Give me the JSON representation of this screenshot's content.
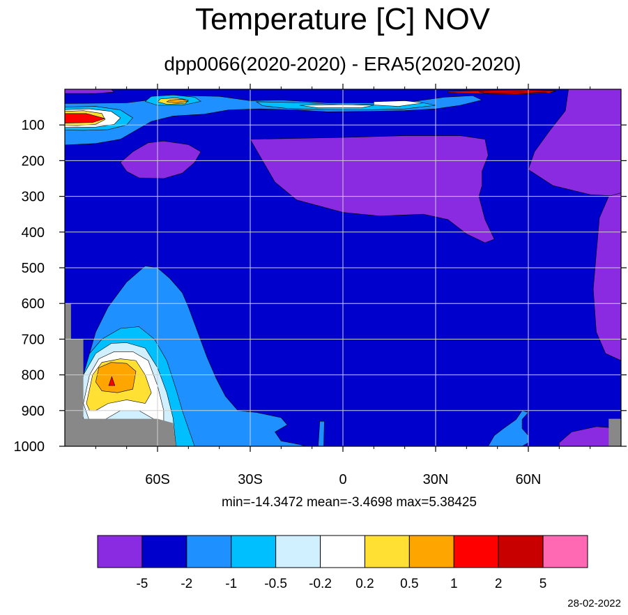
{
  "chart_data": {
    "type": "contour",
    "title": "Temperature [C] NOV",
    "subtitle": "dpp0066(2020-2020) - ERA5(2020-2020)",
    "x_axis": {
      "range": [
        -90,
        90
      ],
      "ticks": [
        -60,
        -30,
        0,
        30,
        60
      ],
      "tick_labels": [
        "60S",
        "30S",
        "0",
        "30N",
        "60N"
      ]
    },
    "y_axis": {
      "range": [
        1000,
        0
      ],
      "ticks": [
        100,
        200,
        300,
        400,
        500,
        600,
        700,
        800,
        900,
        1000
      ],
      "tick_labels": [
        "100",
        "200",
        "300",
        "400",
        "500",
        "600",
        "700",
        "800",
        "900",
        "1000"
      ]
    },
    "grid": true,
    "stats_text": "min=-14.3472   mean=-3.4698   max=5.38425",
    "levels": [
      "-5",
      "-2",
      "-1",
      "-0.5",
      "-0.2",
      "0.2",
      "0.5",
      "1",
      "2",
      "5"
    ],
    "colorbar_colors": [
      "#8a2be2",
      "#0000cd",
      "#1e90ff",
      "#00bfff",
      "#d0f0ff",
      "#ffffff",
      "#ffe033",
      "#ffa500",
      "#ff0000",
      "#c80000",
      "#ff69b4"
    ],
    "missing_color": "#888888",
    "background_color": "#0000cd",
    "regions": [
      {
        "value": "< -5",
        "points": [
          [
            -58,
            145
          ],
          [
            -50,
            155
          ],
          [
            -46,
            175
          ],
          [
            -48,
            205
          ],
          [
            -52,
            235
          ],
          [
            -58,
            250
          ],
          [
            -66,
            248
          ],
          [
            -70,
            230
          ],
          [
            -72,
            205
          ],
          [
            -68,
            175
          ],
          [
            -63,
            150
          ]
        ]
      },
      {
        "value": "< -5",
        "points": [
          [
            -30,
            140
          ],
          [
            0,
            135
          ],
          [
            20,
            130
          ],
          [
            38,
            130
          ],
          [
            46,
            140
          ],
          [
            47,
            185
          ],
          [
            45,
            230
          ],
          [
            45,
            270
          ],
          [
            44,
            300
          ],
          [
            46,
            365
          ],
          [
            49,
            420
          ],
          [
            46,
            430
          ],
          [
            40,
            405
          ],
          [
            34,
            365
          ],
          [
            26,
            350
          ],
          [
            12,
            355
          ],
          [
            0,
            345
          ],
          [
            -15,
            310
          ],
          [
            -22,
            260
          ],
          [
            -26,
            200
          ],
          [
            -29,
            155
          ]
        ]
      },
      {
        "value": "< -5",
        "points": [
          [
            73,
            0
          ],
          [
            90,
            0
          ],
          [
            90,
            300
          ],
          [
            80,
            295
          ],
          [
            68,
            270
          ],
          [
            60,
            225
          ],
          [
            62,
            175
          ],
          [
            67,
            115
          ],
          [
            72,
            60
          ]
        ]
      },
      {
        "value": "< -5",
        "points": [
          [
            90,
            290
          ],
          [
            90,
            760
          ],
          [
            85,
            740
          ],
          [
            82,
            680
          ],
          [
            81,
            560
          ],
          [
            82,
            460
          ],
          [
            83,
            360
          ],
          [
            86,
            300
          ]
        ]
      },
      {
        "value": "< -5",
        "points": [
          [
            70,
            990
          ],
          [
            74,
            960
          ],
          [
            82,
            945
          ],
          [
            90,
            950
          ],
          [
            90,
            1000
          ],
          [
            70,
            1000
          ]
        ]
      },
      {
        "value": "< -5",
        "points": [
          [
            -90,
            0
          ],
          [
            -75,
            0
          ],
          [
            -74,
            8
          ],
          [
            -80,
            12
          ],
          [
            -90,
            12
          ]
        ]
      },
      {
        "value": "-2..-1",
        "points": [
          [
            -90,
            40
          ],
          [
            -70,
            38
          ],
          [
            -58,
            25
          ],
          [
            -50,
            18
          ],
          [
            -40,
            20
          ],
          [
            -30,
            32
          ],
          [
            -20,
            30
          ],
          [
            -5,
            38
          ],
          [
            10,
            38
          ],
          [
            22,
            35
          ],
          [
            33,
            22
          ],
          [
            42,
            18
          ],
          [
            45,
            30
          ],
          [
            38,
            45
          ],
          [
            30,
            55
          ],
          [
            20,
            60
          ],
          [
            8,
            62
          ],
          [
            -5,
            63
          ],
          [
            -15,
            58
          ],
          [
            -27,
            55
          ],
          [
            -37,
            58
          ],
          [
            -45,
            70
          ],
          [
            -55,
            75
          ],
          [
            -62,
            90
          ],
          [
            -67,
            115
          ],
          [
            -72,
            140
          ],
          [
            -80,
            152
          ],
          [
            -90,
            156
          ]
        ]
      },
      {
        "value": "-1..-0.5",
        "points": [
          [
            -90,
            50
          ],
          [
            -80,
            48
          ],
          [
            -72,
            58
          ],
          [
            -68,
            80
          ],
          [
            -70,
            100
          ],
          [
            -76,
            113
          ],
          [
            -84,
            115
          ],
          [
            -90,
            114
          ]
        ]
      },
      {
        "value": "-1..-0.5",
        "points": [
          [
            -62,
            20
          ],
          [
            -55,
            16
          ],
          [
            -48,
            22
          ],
          [
            -46,
            34
          ],
          [
            -52,
            45
          ],
          [
            -60,
            45
          ],
          [
            -64,
            34
          ]
        ]
      },
      {
        "value": "-1..-0.5",
        "points": [
          [
            -28,
            35
          ],
          [
            -12,
            38
          ],
          [
            0,
            44
          ],
          [
            14,
            42
          ],
          [
            26,
            38
          ],
          [
            30,
            45
          ],
          [
            20,
            55
          ],
          [
            6,
            58
          ],
          [
            -6,
            57
          ],
          [
            -18,
            54
          ],
          [
            -26,
            46
          ]
        ]
      },
      {
        "value": "-0.2..0.2",
        "points": [
          [
            -90,
            57
          ],
          [
            -82,
            55
          ],
          [
            -75,
            62
          ],
          [
            -72,
            80
          ],
          [
            -74,
            98
          ],
          [
            -80,
            106
          ],
          [
            -90,
            107
          ]
        ]
      },
      {
        "value": "0.2..0.5",
        "points": [
          [
            -90,
            62
          ],
          [
            -84,
            60
          ],
          [
            -78,
            68
          ],
          [
            -77,
            85
          ],
          [
            -80,
            98
          ],
          [
            -86,
            102
          ],
          [
            -90,
            101
          ]
        ]
      },
      {
        "value": "0.2..0.5",
        "points": [
          [
            -59,
            27
          ],
          [
            -54,
            24
          ],
          [
            -50,
            30
          ],
          [
            -51,
            40
          ],
          [
            -57,
            42
          ],
          [
            -60,
            35
          ]
        ]
      },
      {
        "value": "0.5..1",
        "points": [
          [
            -56,
            30
          ],
          [
            -52,
            28
          ],
          [
            -50,
            34
          ],
          [
            -54,
            38
          ],
          [
            -57,
            35
          ]
        ]
      },
      {
        "value": "1..2",
        "points": [
          [
            -90,
            68
          ],
          [
            -83,
            68
          ],
          [
            -77,
            82
          ],
          [
            -81,
            93
          ],
          [
            -90,
            95
          ]
        ]
      },
      {
        "value": "-0.2..0.2",
        "points": [
          [
            10,
            35
          ],
          [
            20,
            32
          ],
          [
            26,
            38
          ],
          [
            18,
            48
          ],
          [
            10,
            44
          ]
        ]
      },
      {
        "value": "-0.2..0.2",
        "points": [
          [
            -14,
            45
          ],
          [
            0,
            43
          ],
          [
            10,
            45
          ],
          [
            6,
            52
          ],
          [
            -8,
            52
          ]
        ]
      },
      {
        "value": "1..2",
        "points": [
          [
            34,
            6
          ],
          [
            46,
            4
          ],
          [
            58,
            2
          ],
          [
            69,
            5
          ],
          [
            67,
            10
          ],
          [
            56,
            14
          ],
          [
            44,
            12
          ],
          [
            34,
            9
          ]
        ]
      },
      {
        "value": "2..5",
        "points": [
          [
            44,
            7
          ],
          [
            58,
            6
          ],
          [
            66,
            8
          ],
          [
            58,
            11
          ],
          [
            46,
            11
          ]
        ]
      },
      {
        "value": "-2..-1",
        "points": [
          [
            -84,
            1000
          ],
          [
            -86,
            920
          ],
          [
            -84,
            820
          ],
          [
            -82,
            740
          ],
          [
            -80,
            680
          ],
          [
            -76,
            610
          ],
          [
            -70,
            540
          ],
          [
            -64,
            495
          ],
          [
            -60,
            500
          ],
          [
            -56,
            530
          ],
          [
            -52,
            570
          ],
          [
            -50,
            610
          ],
          [
            -47,
            680
          ],
          [
            -44,
            750
          ],
          [
            -41,
            810
          ],
          [
            -38,
            860
          ],
          [
            -34,
            900
          ],
          [
            -28,
            905
          ],
          [
            -20,
            920
          ],
          [
            -18,
            940
          ],
          [
            -22,
            960
          ],
          [
            -20,
            985
          ],
          [
            -14,
            995
          ],
          [
            -12,
            1000
          ]
        ]
      },
      {
        "value": "-1..-0.5",
        "points": [
          [
            -86,
            880
          ],
          [
            -84,
            800
          ],
          [
            -82,
            740
          ],
          [
            -78,
            700
          ],
          [
            -72,
            670
          ],
          [
            -66,
            665
          ],
          [
            -61,
            700
          ],
          [
            -57,
            760
          ],
          [
            -54,
            840
          ],
          [
            -52,
            900
          ],
          [
            -50,
            950
          ],
          [
            -48,
            1000
          ],
          [
            -84,
            1000
          ]
        ]
      },
      {
        "value": "-0.5..-0.2",
        "points": [
          [
            -85,
            880
          ],
          [
            -84,
            800
          ],
          [
            -80,
            740
          ],
          [
            -75,
            712
          ],
          [
            -70,
            710
          ],
          [
            -64,
            725
          ],
          [
            -60,
            780
          ],
          [
            -57,
            850
          ],
          [
            -55,
            920
          ],
          [
            -54,
            1000
          ],
          [
            -82,
            1000
          ]
        ]
      },
      {
        "value": "-0.2..0.2",
        "points": [
          [
            -84,
            880
          ],
          [
            -82,
            800
          ],
          [
            -79,
            755
          ],
          [
            -74,
            735
          ],
          [
            -68,
            735
          ],
          [
            -63,
            760
          ],
          [
            -60,
            830
          ],
          [
            -58,
            900
          ],
          [
            -58,
            940
          ],
          [
            -62,
            920
          ],
          [
            -66,
            900
          ],
          [
            -72,
            900
          ],
          [
            -78,
            930
          ],
          [
            -82,
            930
          ]
        ]
      },
      {
        "value": "0.2..0.5",
        "points": [
          [
            -83,
            880
          ],
          [
            -81,
            800
          ],
          [
            -78,
            765
          ],
          [
            -72,
            755
          ],
          [
            -67,
            760
          ],
          [
            -64,
            800
          ],
          [
            -62,
            850
          ],
          [
            -64,
            880
          ],
          [
            -70,
            870
          ],
          [
            -76,
            880
          ],
          [
            -80,
            900
          ],
          [
            -82,
            900
          ]
        ]
      },
      {
        "value": "0.5..1",
        "points": [
          [
            -80,
            820
          ],
          [
            -79,
            780
          ],
          [
            -75,
            765
          ],
          [
            -70,
            768
          ],
          [
            -67,
            790
          ],
          [
            -68,
            840
          ],
          [
            -73,
            850
          ],
          [
            -78,
            845
          ]
        ]
      },
      {
        "value": "1..2",
        "points": [
          [
            -75.8,
            830
          ],
          [
            -74.8,
            805
          ],
          [
            -73.8,
            830
          ]
        ]
      },
      {
        "value": "-2..-1",
        "points": [
          [
            -8,
            1000
          ],
          [
            -7.5,
            930
          ],
          [
            -6,
            930
          ],
          [
            -6.2,
            1000
          ]
        ]
      },
      {
        "value": "-2..-1",
        "points": [
          [
            47,
            1000
          ],
          [
            49,
            970
          ],
          [
            52,
            950
          ],
          [
            56,
            925
          ],
          [
            58,
            900
          ],
          [
            60,
            905
          ],
          [
            58,
            925
          ],
          [
            58,
            950
          ],
          [
            60,
            970
          ],
          [
            60,
            990
          ],
          [
            58,
            1000
          ]
        ]
      },
      {
        "value": "missing",
        "points": [
          [
            -90,
            600
          ],
          [
            -88,
            600
          ],
          [
            -88,
            700
          ],
          [
            -84,
            700
          ],
          [
            -84,
            923
          ],
          [
            -60,
            923
          ],
          [
            -55,
            935
          ],
          [
            -54,
            1000
          ],
          [
            -90,
            1000
          ]
        ]
      },
      {
        "value": "missing",
        "points": [
          [
            86,
            923
          ],
          [
            90,
            923
          ],
          [
            90,
            1000
          ],
          [
            86,
            1000
          ]
        ]
      }
    ]
  }
}
